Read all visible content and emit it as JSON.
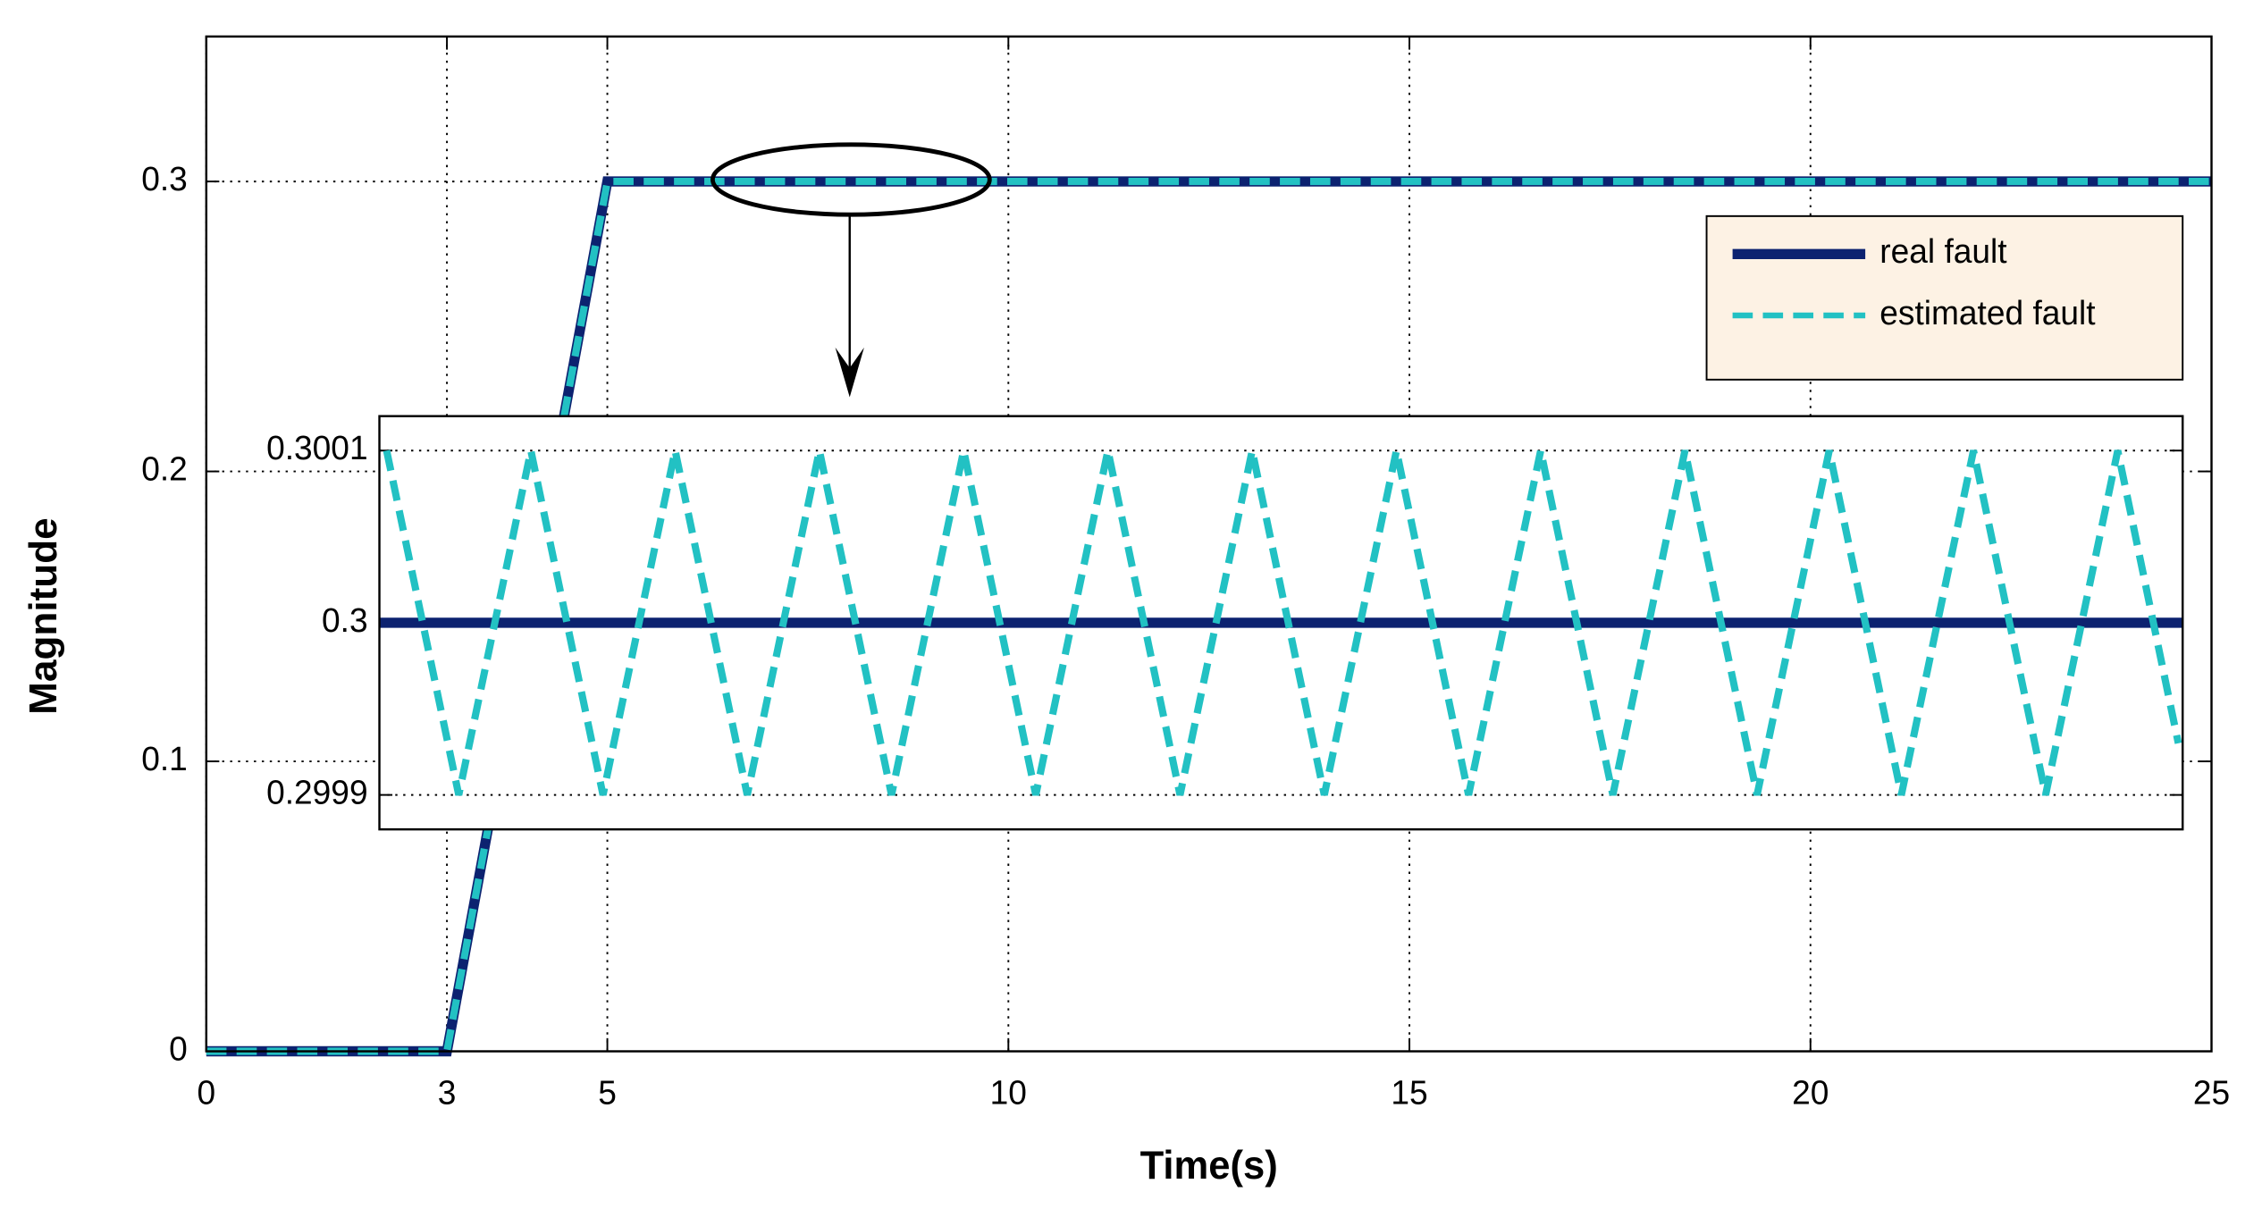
{
  "chart_data": [
    {
      "type": "line",
      "xlabel": "Time(s)",
      "ylabel": "Magnitude",
      "xlim": [
        0,
        25
      ],
      "ylim": [
        0,
        0.35
      ],
      "xticks": [
        0,
        3,
        5,
        10,
        15,
        20,
        25
      ],
      "yticks": [
        0,
        0.1,
        0.2,
        0.3
      ],
      "grid": true,
      "legend": "upper right",
      "series": [
        {
          "name": "real fault",
          "color": "#0c2270",
          "style": "solid",
          "x": [
            0,
            3,
            5,
            25
          ],
          "values": [
            0,
            0,
            0.3,
            0.3
          ]
        },
        {
          "name": "estimated fault",
          "color": "#22c1c3",
          "style": "dashed",
          "x": [
            0,
            3,
            5,
            25
          ],
          "values": [
            0,
            0,
            0.3,
            0.3
          ]
        }
      ]
    },
    {
      "type": "line",
      "xlim": [
        0,
        12.5
      ],
      "ylim": [
        0.29988,
        0.30012
      ],
      "yticks": [
        0.2999,
        0.3,
        0.3001
      ],
      "grid": true,
      "series": [
        {
          "color": "#0c2270",
          "style": "solid",
          "x": [
            0,
            12.5
          ],
          "values": [
            0.3,
            0.3
          ]
        },
        {
          "color": "#22c1c3",
          "style": "dashed",
          "x": [
            0.05,
            0.55,
            1.05,
            1.55,
            2.05,
            2.55,
            3.05,
            3.55,
            4.05,
            4.55,
            5.05,
            5.55,
            6.05,
            6.55,
            7.05,
            7.55,
            8.05,
            8.55,
            9.05,
            9.55,
            10.05,
            10.55,
            11.05,
            11.55,
            12.05,
            12.47
          ],
          "values": [
            0.3001,
            0.2999,
            0.3001,
            0.2999,
            0.3001,
            0.2999,
            0.3001,
            0.2999,
            0.3001,
            0.2999,
            0.3001,
            0.2999,
            0.3001,
            0.2999,
            0.3001,
            0.2999,
            0.3001,
            0.2999,
            0.3001,
            0.2999,
            0.3001,
            0.2999,
            0.3001,
            0.2999,
            0.3001,
            0.29993
          ]
        }
      ]
    }
  ]
}
